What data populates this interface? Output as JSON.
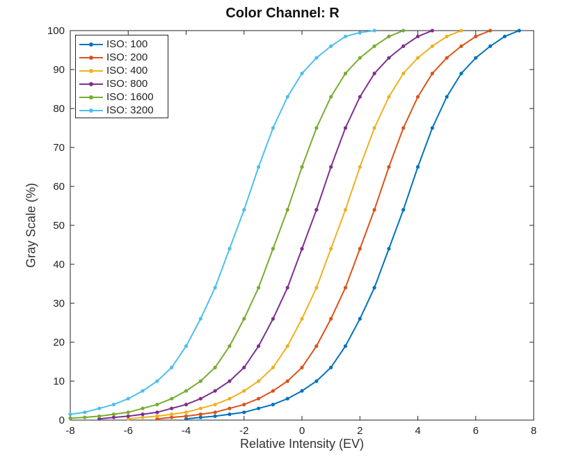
{
  "chart_data": {
    "type": "line",
    "title": "Color Channel: R",
    "xlabel": "Relative Intensity (EV)",
    "ylabel": "Gray Scale (%)",
    "xlim": [
      -8,
      8
    ],
    "ylim": [
      0,
      100
    ],
    "xticks": [
      -8,
      -6,
      -4,
      -2,
      0,
      2,
      4,
      6,
      8
    ],
    "yticks": [
      0,
      10,
      20,
      30,
      40,
      50,
      60,
      70,
      80,
      90,
      100
    ],
    "grid": false,
    "legend_position": "top-left",
    "series": [
      {
        "name": "ISO: 100",
        "color": "#0072BD",
        "x": [
          -4,
          -3.5,
          -3,
          -2.5,
          -2,
          -1.5,
          -1,
          -0.5,
          0,
          0.5,
          1,
          1.5,
          2,
          2.5,
          3,
          3.5,
          4,
          4.5,
          5,
          5.5,
          6,
          6.5,
          7,
          7.5
        ],
        "y": [
          0.3,
          0.7,
          1.0,
          1.5,
          2.0,
          3.0,
          4.0,
          5.5,
          7.5,
          10,
          13.5,
          19,
          26,
          34,
          44,
          54,
          65,
          75,
          83,
          89,
          93,
          96,
          98.5,
          100
        ]
      },
      {
        "name": "ISO: 200",
        "color": "#D95319",
        "x": [
          -5,
          -4.5,
          -4,
          -3.5,
          -3,
          -2.5,
          -2,
          -1.5,
          -1,
          -0.5,
          0,
          0.5,
          1,
          1.5,
          2,
          2.5,
          3,
          3.5,
          4,
          4.5,
          5,
          5.5,
          6,
          6.5
        ],
        "y": [
          0.3,
          0.7,
          1.0,
          1.5,
          2.0,
          3.0,
          4.0,
          5.5,
          7.5,
          10,
          13.5,
          19,
          26,
          34,
          44,
          54,
          65,
          75,
          83,
          89,
          93,
          96,
          98.5,
          100
        ]
      },
      {
        "name": "ISO: 400",
        "color": "#EDB120",
        "x": [
          -6,
          -5.5,
          -5,
          -4.5,
          -4,
          -3.5,
          -3,
          -2.5,
          -2,
          -1.5,
          -1,
          -0.5,
          0,
          0.5,
          1,
          1.5,
          2,
          2.5,
          3,
          3.5,
          4,
          4.5,
          5,
          5.5
        ],
        "y": [
          0.3,
          0.7,
          1.0,
          1.5,
          2.0,
          3.0,
          4.0,
          5.5,
          7.5,
          10,
          13.5,
          19,
          26,
          34,
          44,
          54,
          65,
          75,
          83,
          89,
          93,
          96,
          98.5,
          100
        ]
      },
      {
        "name": "ISO: 800",
        "color": "#7E2F8E",
        "x": [
          -7,
          -6.5,
          -6,
          -5.5,
          -5,
          -4.5,
          -4,
          -3.5,
          -3,
          -2.5,
          -2,
          -1.5,
          -1,
          -0.5,
          0,
          0.5,
          1,
          1.5,
          2,
          2.5,
          3,
          3.5,
          4,
          4.5
        ],
        "y": [
          0.3,
          0.7,
          1.0,
          1.5,
          2.0,
          3.0,
          4.0,
          5.5,
          7.5,
          10,
          13.5,
          19,
          26,
          34,
          44,
          54,
          65,
          75,
          83,
          89,
          93,
          96,
          98.5,
          100
        ]
      },
      {
        "name": "ISO: 1600",
        "color": "#77AC30",
        "x": [
          -8,
          -7.5,
          -7,
          -6.5,
          -6,
          -5.5,
          -5,
          -4.5,
          -4,
          -3.5,
          -3,
          -2.5,
          -2,
          -1.5,
          -1,
          -0.5,
          0,
          0.5,
          1,
          1.5,
          2,
          2.5,
          3,
          3.5
        ],
        "y": [
          0.5,
          0.7,
          1.0,
          1.5,
          2.0,
          3.0,
          4.0,
          5.5,
          7.5,
          10,
          13.5,
          19,
          26,
          34,
          44,
          54,
          65,
          75,
          83,
          89,
          93,
          96,
          98.5,
          100
        ]
      },
      {
        "name": "ISO: 3200",
        "color": "#4DBEEE",
        "x": [
          -8,
          -7.5,
          -7,
          -6.5,
          -6,
          -5.5,
          -5,
          -4.5,
          -4,
          -3.5,
          -3,
          -2.5,
          -2,
          -1.5,
          -1,
          -0.5,
          0,
          0.5,
          1,
          1.5,
          2,
          2.5
        ],
        "y": [
          1.5,
          2.0,
          3.0,
          4.0,
          5.5,
          7.5,
          10,
          13.5,
          19,
          26,
          34,
          44,
          54,
          65,
          75,
          83,
          89,
          93,
          96,
          98.5,
          99.5,
          100
        ]
      }
    ]
  }
}
